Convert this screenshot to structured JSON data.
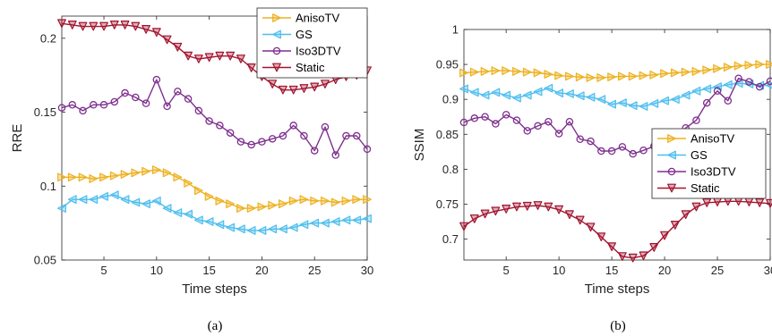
{
  "chart_data": [
    {
      "type": "line",
      "caption": "(a)",
      "xlabel": "Time steps",
      "ylabel": "RRE",
      "xlim": [
        1,
        30
      ],
      "ylim": [
        0.05,
        0.215
      ],
      "xticks": [
        5,
        10,
        15,
        20,
        25,
        30
      ],
      "yticks": [
        0.05,
        0.1,
        0.15,
        0.2
      ],
      "ytick_labels": [
        "0.05",
        "0.1",
        "0.15",
        "0.2"
      ],
      "grid": false,
      "legend_position": "top-right",
      "x": [
        1,
        2,
        3,
        4,
        5,
        6,
        7,
        8,
        9,
        10,
        11,
        12,
        13,
        14,
        15,
        16,
        17,
        18,
        19,
        20,
        21,
        22,
        23,
        24,
        25,
        26,
        27,
        28,
        29,
        30
      ],
      "series": [
        {
          "name": "AnisoTV",
          "color": "#EDB120",
          "marker": "triangle-right",
          "values": [
            0.106,
            0.106,
            0.106,
            0.105,
            0.106,
            0.107,
            0.108,
            0.109,
            0.11,
            0.111,
            0.109,
            0.106,
            0.102,
            0.097,
            0.093,
            0.09,
            0.088,
            0.085,
            0.085,
            0.086,
            0.087,
            0.088,
            0.09,
            0.091,
            0.09,
            0.09,
            0.089,
            0.09,
            0.091,
            0.091
          ]
        },
        {
          "name": "GS",
          "color": "#4DBEEE",
          "marker": "triangle-left",
          "values": [
            0.085,
            0.091,
            0.091,
            0.091,
            0.093,
            0.094,
            0.091,
            0.089,
            0.088,
            0.09,
            0.085,
            0.082,
            0.081,
            0.077,
            0.076,
            0.074,
            0.072,
            0.071,
            0.07,
            0.07,
            0.071,
            0.071,
            0.072,
            0.074,
            0.075,
            0.075,
            0.076,
            0.077,
            0.077,
            0.078
          ]
        },
        {
          "name": "Iso3DTV",
          "color": "#7E2F8E",
          "marker": "circle",
          "values": [
            0.153,
            0.155,
            0.151,
            0.155,
            0.155,
            0.157,
            0.163,
            0.16,
            0.156,
            0.172,
            0.154,
            0.164,
            0.159,
            0.151,
            0.144,
            0.141,
            0.136,
            0.13,
            0.128,
            0.13,
            0.132,
            0.134,
            0.141,
            0.134,
            0.124,
            0.14,
            0.121,
            0.134,
            0.134,
            0.125
          ]
        },
        {
          "name": "Static",
          "color": "#A2142F",
          "marker": "triangle-down",
          "values": [
            0.21,
            0.209,
            0.208,
            0.208,
            0.208,
            0.209,
            0.209,
            0.208,
            0.206,
            0.204,
            0.199,
            0.194,
            0.188,
            0.186,
            0.187,
            0.188,
            0.188,
            0.186,
            0.18,
            0.174,
            0.169,
            0.165,
            0.165,
            0.166,
            0.167,
            0.169,
            0.172,
            0.174,
            0.175,
            0.178
          ]
        }
      ]
    },
    {
      "type": "line",
      "caption": "(b)",
      "xlabel": "Time steps",
      "ylabel": "SSIM",
      "xlim": [
        1,
        30
      ],
      "ylim": [
        0.67,
        1.0
      ],
      "xticks": [
        5,
        10,
        15,
        20,
        25,
        30
      ],
      "yticks": [
        0.7,
        0.75,
        0.8,
        0.85,
        0.9,
        0.95,
        1.0
      ],
      "ytick_labels": [
        "0.7",
        "0.75",
        "0.8",
        "0.85",
        "0.9",
        "0.95",
        "1"
      ],
      "grid": false,
      "legend_position": "middle-right",
      "x": [
        1,
        2,
        3,
        4,
        5,
        6,
        7,
        8,
        9,
        10,
        11,
        12,
        13,
        14,
        15,
        16,
        17,
        18,
        19,
        20,
        21,
        22,
        23,
        24,
        25,
        26,
        27,
        28,
        29,
        30
      ],
      "series": [
        {
          "name": "AnisoTV",
          "color": "#EDB120",
          "marker": "triangle-right",
          "values": [
            0.938,
            0.939,
            0.94,
            0.941,
            0.941,
            0.94,
            0.939,
            0.938,
            0.936,
            0.934,
            0.933,
            0.932,
            0.931,
            0.931,
            0.932,
            0.933,
            0.933,
            0.934,
            0.935,
            0.937,
            0.938,
            0.939,
            0.94,
            0.942,
            0.944,
            0.946,
            0.948,
            0.949,
            0.95,
            0.95
          ]
        },
        {
          "name": "GS",
          "color": "#4DBEEE",
          "marker": "triangle-left",
          "values": [
            0.915,
            0.91,
            0.906,
            0.91,
            0.906,
            0.902,
            0.906,
            0.911,
            0.916,
            0.909,
            0.908,
            0.905,
            0.903,
            0.9,
            0.893,
            0.895,
            0.891,
            0.89,
            0.894,
            0.898,
            0.9,
            0.906,
            0.912,
            0.915,
            0.918,
            0.921,
            0.923,
            0.922,
            0.92,
            0.92
          ]
        },
        {
          "name": "Iso3DTV",
          "color": "#7E2F8E",
          "marker": "circle",
          "values": [
            0.867,
            0.873,
            0.875,
            0.865,
            0.878,
            0.87,
            0.855,
            0.862,
            0.868,
            0.851,
            0.868,
            0.843,
            0.84,
            0.826,
            0.826,
            0.832,
            0.822,
            0.827,
            0.833,
            0.845,
            0.85,
            0.859,
            0.87,
            0.895,
            0.912,
            0.898,
            0.93,
            0.925,
            0.918,
            0.926
          ]
        },
        {
          "name": "Static",
          "color": "#A2142F",
          "marker": "triangle-down",
          "values": [
            0.718,
            0.729,
            0.736,
            0.74,
            0.743,
            0.746,
            0.747,
            0.748,
            0.746,
            0.742,
            0.735,
            0.727,
            0.717,
            0.703,
            0.689,
            0.675,
            0.673,
            0.676,
            0.688,
            0.705,
            0.72,
            0.735,
            0.746,
            0.752,
            0.753,
            0.754,
            0.754,
            0.753,
            0.752,
            0.751
          ]
        }
      ]
    }
  ]
}
